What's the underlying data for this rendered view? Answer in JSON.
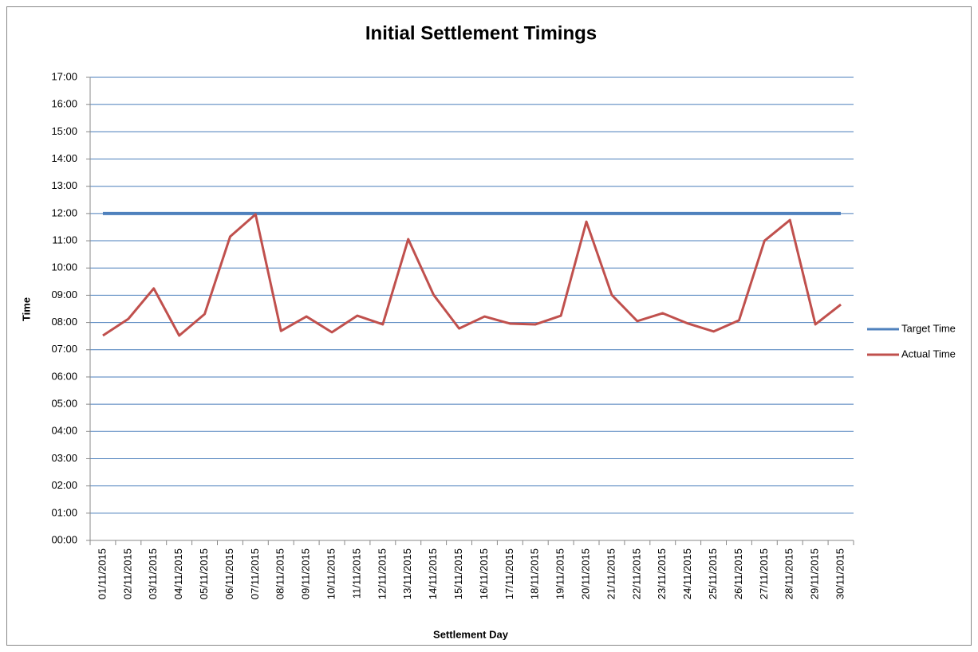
{
  "chart_data": {
    "type": "line",
    "title": "Initial Settlement Timings",
    "x_label": "Settlement Day",
    "y_label": "Time",
    "categories": [
      "01/11/2015",
      "02/11/2015",
      "03/11/2015",
      "04/11/2015",
      "05/11/2015",
      "06/11/2015",
      "07/11/2015",
      "08/11/2015",
      "09/11/2015",
      "10/11/2015",
      "11/11/2015",
      "12/11/2015",
      "13/11/2015",
      "14/11/2015",
      "15/11/2015",
      "16/11/2015",
      "17/11/2015",
      "18/11/2015",
      "19/11/2015",
      "20/11/2015",
      "21/11/2015",
      "22/11/2015",
      "23/11/2015",
      "24/11/2015",
      "25/11/2015",
      "26/11/2015",
      "27/11/2015",
      "28/11/2015",
      "29/11/2015",
      "30/11/2015"
    ],
    "series": [
      {
        "name": "Target Time",
        "color": "#4f81bd",
        "values": [
          12,
          12,
          12,
          12,
          12,
          12,
          12,
          12,
          12,
          12,
          12,
          12,
          12,
          12,
          12,
          12,
          12,
          12,
          12,
          12,
          12,
          12,
          12,
          12,
          12,
          12,
          12,
          12,
          12,
          12
        ]
      },
      {
        "name": "Actual Time",
        "color": "#c0504d",
        "values": [
          7.52,
          8.13,
          9.25,
          7.52,
          8.31,
          11.15,
          11.97,
          7.69,
          8.22,
          7.64,
          8.25,
          7.93,
          11.06,
          9.01,
          7.78,
          8.22,
          7.96,
          7.93,
          8.25,
          11.7,
          9.01,
          8.05,
          8.34,
          7.96,
          7.67,
          8.08,
          11.0,
          11.76,
          7.93,
          8.66
        ]
      }
    ],
    "ylim": [
      0,
      17
    ],
    "yticks": [
      {
        "value": 0,
        "label": "00:00"
      },
      {
        "value": 1,
        "label": "01:00"
      },
      {
        "value": 2,
        "label": "02:00"
      },
      {
        "value": 3,
        "label": "03:00"
      },
      {
        "value": 4,
        "label": "04:00"
      },
      {
        "value": 5,
        "label": "05:00"
      },
      {
        "value": 6,
        "label": "06:00"
      },
      {
        "value": 7,
        "label": "07:00"
      },
      {
        "value": 8,
        "label": "08:00"
      },
      {
        "value": 9,
        "label": "09:00"
      },
      {
        "value": 10,
        "label": "10:00"
      },
      {
        "value": 11,
        "label": "11:00"
      },
      {
        "value": 12,
        "label": "12:00"
      },
      {
        "value": 13,
        "label": "13:00"
      },
      {
        "value": 14,
        "label": "14:00"
      },
      {
        "value": 15,
        "label": "15:00"
      },
      {
        "value": 16,
        "label": "16:00"
      },
      {
        "value": 17,
        "label": "17:00"
      }
    ],
    "grid": true,
    "legend": "right"
  }
}
